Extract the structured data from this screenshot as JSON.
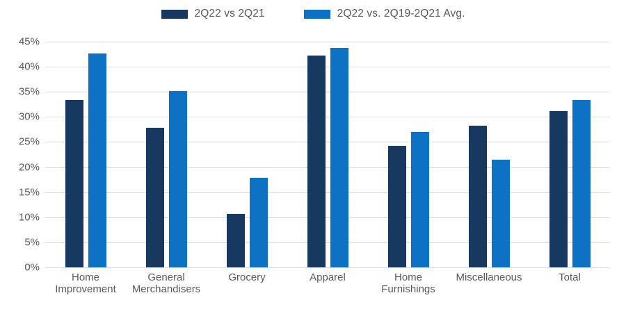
{
  "legend": {
    "items": [
      {
        "label": "2Q22 vs 2Q21",
        "color": "#18395f"
      },
      {
        "label": "2Q22 vs. 2Q19-2Q21 Avg.",
        "color": "#0e72c4"
      }
    ]
  },
  "chart_data": {
    "type": "bar",
    "title": "",
    "xlabel": "",
    "ylabel": "",
    "categories": [
      "Home Improvement",
      "General Merchandisers",
      "Grocery",
      "Apparel",
      "Home Furnishings",
      "Miscellaneous",
      "Total"
    ],
    "series": [
      {
        "name": "2Q22 vs 2Q21",
        "color": "#18395f",
        "values": [
          33.4,
          27.9,
          10.7,
          42.2,
          24.3,
          28.2,
          31.2
        ]
      },
      {
        "name": "2Q22 vs. 2Q19-2Q21 Avg.",
        "color": "#0e72c4",
        "values": [
          42.7,
          35.2,
          17.9,
          43.8,
          27.0,
          21.4,
          33.4
        ]
      }
    ],
    "value_format": "percent",
    "ylim": [
      0,
      45
    ],
    "y_tick_step": 5,
    "y_tick_labels": [
      "0%",
      "5%",
      "10%",
      "15%",
      "20%",
      "25%",
      "30%",
      "35%",
      "40%",
      "45%"
    ],
    "grid": true,
    "gridline_color": "#dcdcdc",
    "axis_text_color": "#595959",
    "legend_position": "top-center",
    "background_color": "#ffffff"
  }
}
